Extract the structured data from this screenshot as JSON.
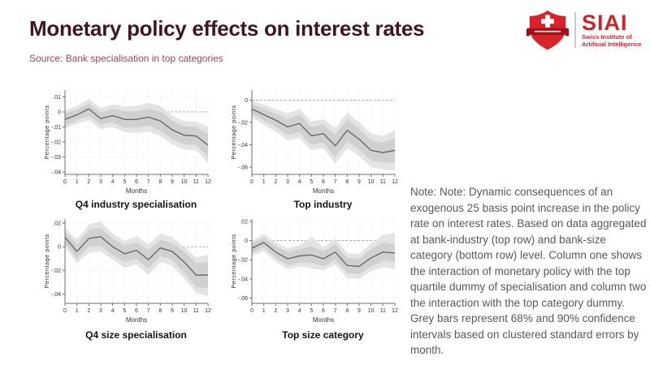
{
  "header": {
    "title": "Monetary policy effects on interest rates",
    "source": "Source: Bank specialisation in top categories"
  },
  "logo": {
    "acronym": "SIAI",
    "line1": "Swiss Institute of",
    "line2": "Artificial Intelligence",
    "brand_red": "#c1272d",
    "shield_red": "#d8232a",
    "ribbon_dark": "#9e1218"
  },
  "note": {
    "text": "Note: Note: Dynamic consequences of an exogenous 25 basis point increase in the policy rate on interest rates. Based on data aggregated at bank-industry (top row) and bank-size category (bottom row) level. Column one shows the interaction of monetary policy with the top quartile dummy of specialisation and column two the interaction with the top category dummy. Grey bars represent 68% and 90% confidence intervals based on clustered standard errors by month."
  },
  "colors": {
    "title_text": "#3f1722",
    "source_text": "#8e4a54",
    "note_text": "#595959",
    "band90": "#e4e4e4",
    "band68": "#d0d0d0",
    "line": "#5a5a5a",
    "axis": "#6e6e6e",
    "grid": "#d8d8d8",
    "zero_line": "#9a9a9a",
    "tick_text": "#333333"
  },
  "chart_data": [
    {
      "type": "line",
      "title": "Q4 industry specialisation",
      "xlabel": "Months",
      "ylabel": "Percentage points",
      "x": [
        0,
        1,
        2,
        3,
        4,
        5,
        6,
        7,
        8,
        9,
        10,
        11,
        12
      ],
      "ylim": [
        -0.0415,
        0.0145
      ],
      "ytick_values": [
        0.01,
        0,
        -0.01,
        -0.02,
        -0.03,
        -0.04
      ],
      "ytick_labels": [
        ".01",
        "0",
        "-.01",
        "-.02",
        "-.03",
        "-.04"
      ],
      "zero_line": true,
      "series": [
        {
          "name": "point estimate",
          "values": [
            -0.005,
            -0.002,
            0.002,
            -0.0045,
            -0.0025,
            -0.005,
            -0.005,
            -0.0035,
            -0.006,
            -0.012,
            -0.0155,
            -0.016,
            -0.022
          ]
        }
      ],
      "band68": {
        "upper": [
          -0.001,
          0.0015,
          0.0055,
          -0.0005,
          0.002,
          0.0005,
          0.0005,
          0.002,
          0.0005,
          -0.006,
          -0.0095,
          -0.01,
          -0.0145
        ],
        "lower": [
          -0.009,
          -0.0055,
          -0.0025,
          -0.0085,
          -0.007,
          -0.0105,
          -0.0105,
          -0.009,
          -0.0125,
          -0.018,
          -0.0215,
          -0.022,
          -0.0295
        ]
      },
      "band90": {
        "upper": [
          0.001,
          0.004,
          0.0085,
          0.0025,
          0.005,
          0.0035,
          0.004,
          0.006,
          0.004,
          -0.0025,
          -0.006,
          -0.0065,
          -0.01
        ],
        "lower": [
          -0.011,
          -0.008,
          -0.0055,
          -0.0115,
          -0.01,
          -0.0135,
          -0.014,
          -0.013,
          -0.016,
          -0.0215,
          -0.025,
          -0.0255,
          -0.034
        ]
      }
    },
    {
      "type": "line",
      "title": "Top industry",
      "xlabel": "Months",
      "ylabel": "Percentage points",
      "x": [
        0,
        1,
        2,
        3,
        4,
        5,
        6,
        7,
        8,
        9,
        10,
        11,
        12
      ],
      "ylim": [
        -0.0665,
        0.009
      ],
      "ytick_values": [
        0,
        -0.02,
        -0.04,
        -0.06
      ],
      "ytick_labels": [
        "0",
        "-.02",
        "-.04",
        "-.06"
      ],
      "zero_line": true,
      "series": [
        {
          "name": "point estimate",
          "values": [
            -0.008,
            -0.013,
            -0.018,
            -0.024,
            -0.021,
            -0.032,
            -0.03,
            -0.041,
            -0.027,
            -0.035,
            -0.045,
            -0.047,
            -0.045
          ]
        }
      ],
      "band68": {
        "upper": [
          -0.0035,
          -0.008,
          -0.012,
          -0.017,
          -0.013,
          -0.024,
          -0.022,
          -0.031,
          -0.017,
          -0.026,
          -0.036,
          -0.038,
          -0.034
        ],
        "lower": [
          -0.0125,
          -0.018,
          -0.024,
          -0.031,
          -0.029,
          -0.04,
          -0.038,
          -0.051,
          -0.037,
          -0.044,
          -0.054,
          -0.056,
          -0.056
        ]
      },
      "band90": {
        "upper": [
          -0.0005,
          -0.004,
          -0.008,
          -0.012,
          -0.008,
          -0.019,
          -0.017,
          -0.025,
          -0.011,
          -0.02,
          -0.03,
          -0.032,
          -0.027
        ],
        "lower": [
          -0.0155,
          -0.022,
          -0.028,
          -0.036,
          -0.034,
          -0.045,
          -0.043,
          -0.057,
          -0.043,
          -0.05,
          -0.06,
          -0.062,
          -0.063
        ]
      }
    },
    {
      "type": "line",
      "title": "Q4 size specialisation",
      "xlabel": "Months",
      "ylabel": "Percentage points",
      "x": [
        0,
        1,
        2,
        3,
        4,
        5,
        6,
        7,
        8,
        9,
        10,
        11,
        12
      ],
      "ylim": [
        -0.048,
        0.0235
      ],
      "ytick_values": [
        0.02,
        0,
        -0.02,
        -0.04
      ],
      "ytick_labels": [
        ".02",
        "0",
        "-.02",
        "-.04"
      ],
      "zero_line": true,
      "series": [
        {
          "name": "point estimate",
          "values": [
            0.008,
            -0.004,
            0.007,
            0.0085,
            0.0,
            -0.006,
            -0.003,
            -0.011,
            -0.001,
            -0.004,
            -0.013,
            -0.024,
            -0.024
          ]
        }
      ],
      "band68": {
        "upper": [
          0.013,
          0.002,
          0.014,
          0.016,
          0.007,
          0.001,
          0.004,
          -0.003,
          0.006,
          0.003,
          -0.004,
          -0.014,
          -0.013
        ],
        "lower": [
          0.003,
          -0.01,
          0.0,
          0.001,
          -0.007,
          -0.013,
          -0.01,
          -0.019,
          -0.008,
          -0.011,
          -0.022,
          -0.034,
          -0.035
        ]
      },
      "band90": {
        "upper": [
          0.016,
          0.006,
          0.019,
          0.0215,
          0.011,
          0.005,
          0.009,
          0.002,
          0.011,
          0.008,
          0.0,
          -0.009,
          -0.007
        ],
        "lower": [
          0.0,
          -0.014,
          -0.005,
          -0.004,
          -0.011,
          -0.018,
          -0.015,
          -0.024,
          -0.013,
          -0.016,
          -0.027,
          -0.039,
          -0.042
        ]
      }
    },
    {
      "type": "line",
      "title": "Top size category",
      "xlabel": "Months",
      "ylabel": "Percentage points",
      "x": [
        0,
        1,
        2,
        3,
        4,
        5,
        6,
        7,
        8,
        9,
        10,
        11,
        12
      ],
      "ylim": [
        -0.0655,
        0.0225
      ],
      "ytick_values": [
        0.02,
        0,
        -0.02,
        -0.04,
        -0.06
      ],
      "ytick_labels": [
        ".02",
        "0",
        "-.02",
        "-.04",
        "-.06"
      ],
      "zero_line": true,
      "series": [
        {
          "name": "point estimate",
          "values": [
            -0.008,
            -0.002,
            -0.012,
            -0.019,
            -0.016,
            -0.015,
            -0.019,
            -0.012,
            -0.026,
            -0.027,
            -0.018,
            -0.012,
            -0.013
          ]
        }
      ],
      "band68": {
        "upper": [
          -0.003,
          0.003,
          -0.006,
          -0.012,
          -0.009,
          -0.006,
          -0.011,
          -0.004,
          -0.018,
          -0.019,
          -0.009,
          -0.002,
          -0.004
        ],
        "lower": [
          -0.013,
          -0.007,
          -0.018,
          -0.026,
          -0.023,
          -0.023,
          -0.027,
          -0.02,
          -0.034,
          -0.035,
          -0.027,
          -0.021,
          -0.022
        ]
      },
      "band90": {
        "upper": [
          0.0,
          0.007,
          -0.002,
          -0.008,
          -0.005,
          0.004,
          -0.007,
          0.002,
          -0.013,
          -0.014,
          -0.003,
          0.006,
          0.008
        ],
        "lower": [
          -0.016,
          -0.011,
          -0.022,
          -0.03,
          -0.027,
          -0.029,
          -0.031,
          -0.025,
          -0.039,
          -0.04,
          -0.032,
          -0.028,
          -0.03
        ]
      }
    }
  ]
}
